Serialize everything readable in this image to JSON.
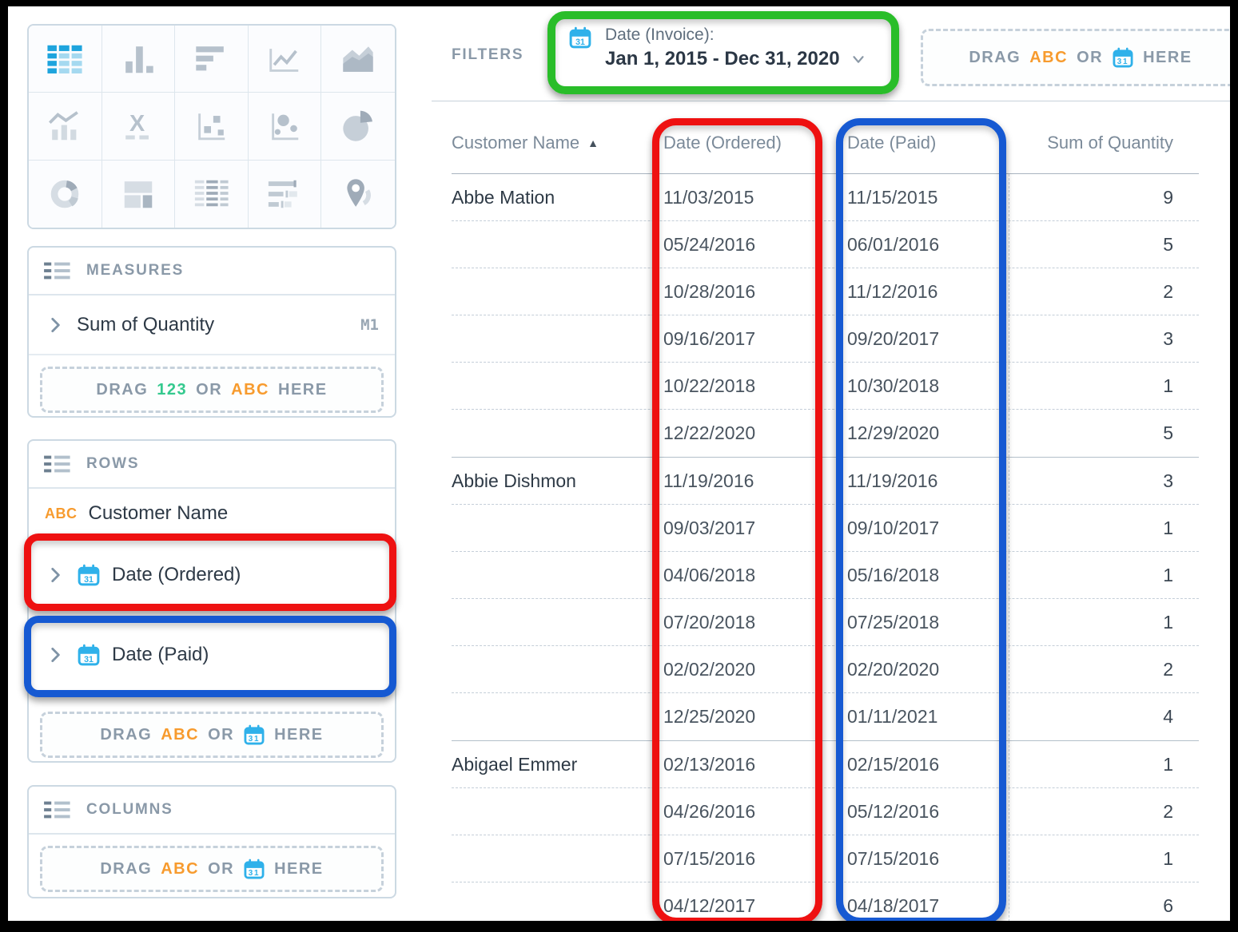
{
  "chart_picker": {
    "active_type": "table",
    "types": [
      "table",
      "column-chart",
      "bar-chart",
      "line-chart",
      "area-chart",
      "combo-chart",
      "x-axis",
      "scatter-plot",
      "bubble-chart",
      "pie-chart",
      "donut-chart",
      "layout-summary",
      "pivot-table",
      "bullet-chart",
      "map"
    ]
  },
  "measures": {
    "title": "MEASURES",
    "items": [
      {
        "label": "Sum of Quantity",
        "tag": "M1"
      }
    ],
    "dropzone": {
      "drag": "DRAG",
      "num_token": "123",
      "or": "OR",
      "text_token": "ABC",
      "here": "HERE"
    }
  },
  "rows_shelf": {
    "title": "ROWS",
    "items": [
      {
        "label": "Customer Name",
        "type_tag": "ABC"
      },
      {
        "label": "Date (Ordered)",
        "icon": "calendar-icon",
        "annotation": "red"
      },
      {
        "label": "Date (Paid)",
        "icon": "calendar-icon",
        "annotation": "blue"
      }
    ],
    "dropzone": {
      "drag": "DRAG",
      "text_token": "ABC",
      "or": "OR",
      "icon_token": "calendar-icon",
      "here": "HERE"
    }
  },
  "columns_shelf": {
    "title": "COLUMNS",
    "dropzone": {
      "drag": "DRAG",
      "text_token": "ABC",
      "or": "OR",
      "icon_token": "calendar-icon",
      "here": "HERE"
    }
  },
  "filters": {
    "label": "FILTERS",
    "active_filter": {
      "field": "Date (Invoice):",
      "value": "Jan 1, 2015 - Dec 31, 2020",
      "icon": "calendar-icon",
      "annotation": "green"
    },
    "dropzone": {
      "drag": "DRAG",
      "text_token": "ABC",
      "or": "OR",
      "icon_token": "calendar-icon",
      "here": "HERE"
    }
  },
  "table": {
    "headers": [
      {
        "label": "Customer Name",
        "sort": "asc",
        "sort_glyph": "▲"
      },
      {
        "label": "Date (Ordered)",
        "annotation": "red"
      },
      {
        "label": "Date (Paid)",
        "annotation": "blue"
      },
      {
        "label": "Sum of Quantity"
      }
    ],
    "groups": [
      {
        "customer": "Abbe Mation",
        "rows": [
          [
            "11/03/2015",
            "11/15/2015",
            "9"
          ],
          [
            "05/24/2016",
            "06/01/2016",
            "5"
          ],
          [
            "10/28/2016",
            "11/12/2016",
            "2"
          ],
          [
            "09/16/2017",
            "09/20/2017",
            "3"
          ],
          [
            "10/22/2018",
            "10/30/2018",
            "1"
          ],
          [
            "12/22/2020",
            "12/29/2020",
            "5"
          ]
        ]
      },
      {
        "customer": "Abbie Dishmon",
        "rows": [
          [
            "11/19/2016",
            "11/19/2016",
            "3"
          ],
          [
            "09/03/2017",
            "09/10/2017",
            "1"
          ],
          [
            "04/06/2018",
            "05/16/2018",
            "1"
          ],
          [
            "07/20/2018",
            "07/25/2018",
            "1"
          ],
          [
            "02/02/2020",
            "02/20/2020",
            "2"
          ],
          [
            "12/25/2020",
            "01/11/2021",
            "4"
          ]
        ]
      },
      {
        "customer": "Abigael Emmer",
        "rows": [
          [
            "02/13/2016",
            "02/15/2016",
            "1"
          ],
          [
            "04/26/2016",
            "05/12/2016",
            "2"
          ],
          [
            "07/15/2016",
            "07/15/2016",
            "1"
          ],
          [
            "04/12/2017",
            "04/18/2017",
            "6"
          ]
        ]
      }
    ]
  },
  "annotation_colors": {
    "red": "#ee1111",
    "blue": "#1659d2",
    "green": "#29bd29"
  },
  "accent_colors": {
    "abc_orange": "#f79b2e",
    "num_green": "#34c98e",
    "calendar_blue": "#2fb1ea",
    "active_table_blue": "#1ea4dd"
  }
}
